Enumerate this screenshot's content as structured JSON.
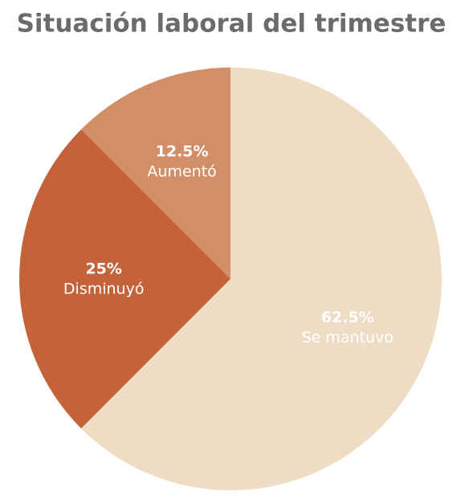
{
  "chart_data": {
    "type": "pie",
    "title": "Situación laboral del trimestre",
    "categories": [
      "Se mantuvo",
      "Disminuyó",
      "Aumentó"
    ],
    "values": [
      62.5,
      25,
      12.5
    ],
    "value_labels": [
      "62.5%",
      "25%",
      "12.5%"
    ],
    "colors": [
      "#eeddc4",
      "#c4623a",
      "#d28e66"
    ]
  }
}
